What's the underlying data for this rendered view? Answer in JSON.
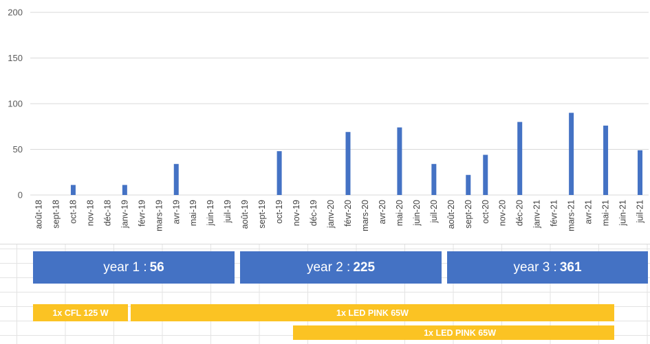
{
  "chart_data": {
    "type": "bar",
    "title": "",
    "xlabel": "",
    "ylabel": "",
    "ylim": [
      0,
      200
    ],
    "yticks": [
      0,
      50,
      100,
      150,
      200
    ],
    "grid": true,
    "categories": [
      "août-18",
      "sept-18",
      "oct-18",
      "nov-18",
      "déc-18",
      "janv-19",
      "févr-19",
      "mars-19",
      "avr-19",
      "mai-19",
      "juin-19",
      "juil-19",
      "août-19",
      "sept-19",
      "oct-19",
      "nov-19",
      "déc-19",
      "janv-20",
      "févr-20",
      "mars-20",
      "avr-20",
      "mai-20",
      "juin-20",
      "juil-20",
      "août-20",
      "sept-20",
      "oct-20",
      "nov-20",
      "déc-20",
      "janv-21",
      "févr-21",
      "mars-21",
      "avr-21",
      "mai-21",
      "juin-21",
      "juil-21"
    ],
    "values": [
      0,
      0,
      11,
      0,
      0,
      11,
      0,
      0,
      34,
      0,
      0,
      0,
      0,
      0,
      48,
      0,
      0,
      0,
      69,
      0,
      0,
      74,
      0,
      34,
      0,
      22,
      44,
      0,
      80,
      0,
      0,
      90,
      0,
      76,
      0,
      49
    ],
    "color": "#4472c4"
  },
  "summary": {
    "years": [
      {
        "label": "year 1 :",
        "total": "56"
      },
      {
        "label": "year 2 :",
        "total": "225"
      },
      {
        "label": "year 3 :",
        "total": "361"
      }
    ],
    "lamps": [
      {
        "label": "1x CFL 125 W"
      },
      {
        "label": "1x LED PINK 65W"
      },
      {
        "label": "1x LED PINK 65W"
      }
    ],
    "colors": {
      "year_box": "#4472c4",
      "lamp_bar": "#fbc323"
    }
  }
}
